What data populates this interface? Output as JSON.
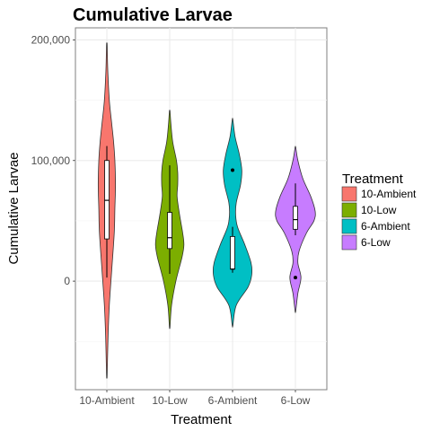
{
  "chart_data": {
    "type": "violin",
    "title": "Cumulative Larvae",
    "xlabel": "Treatment",
    "ylabel": "Cumulative Larvae",
    "ylim": [
      -90000,
      210000
    ],
    "y_ticks": [
      0,
      100000,
      200000
    ],
    "y_tick_labels": [
      "0",
      "100,000",
      "200,000"
    ],
    "categories": [
      "10-Ambient",
      "10-Low",
      "6-Ambient",
      "6-Low"
    ],
    "grid": true,
    "legend": {
      "title": "Treatment",
      "position": "right",
      "entries": [
        "10-Ambient",
        "10-Low",
        "6-Ambient",
        "6-Low"
      ]
    },
    "series": [
      {
        "name": "10-Ambient",
        "color": "#F8766D",
        "min": -78000,
        "max": 196000,
        "box": {
          "whisker_low": 3000,
          "q1": 35000,
          "median": 67000,
          "q3": 100000,
          "whisker_high": 112000
        },
        "outliers": [],
        "density": [
          [
            -78000,
            0.5
          ],
          [
            -45000,
            2
          ],
          [
            -20000,
            4
          ],
          [
            10000,
            8
          ],
          [
            40000,
            12
          ],
          [
            60000,
            13
          ],
          [
            80000,
            14
          ],
          [
            100000,
            13
          ],
          [
            115000,
            11
          ],
          [
            130000,
            8
          ],
          [
            150000,
            4
          ],
          [
            175000,
            1.5
          ],
          [
            196000,
            0.5
          ]
        ]
      },
      {
        "name": "10-Low",
        "color": "#7CAE00",
        "min": -38000,
        "max": 141000,
        "box": {
          "whisker_low": 6000,
          "q1": 27000,
          "median": 36000,
          "q3": 57000,
          "whisker_high": 96000
        },
        "outliers": [],
        "density": [
          [
            -38000,
            0.5
          ],
          [
            -20000,
            3
          ],
          [
            0,
            10
          ],
          [
            20000,
            20
          ],
          [
            30000,
            23
          ],
          [
            40000,
            21
          ],
          [
            55000,
            16
          ],
          [
            70000,
            12
          ],
          [
            80000,
            13
          ],
          [
            90000,
            13
          ],
          [
            100000,
            11
          ],
          [
            115000,
            5
          ],
          [
            130000,
            2
          ],
          [
            141000,
            0.5
          ]
        ]
      },
      {
        "name": "6-Ambient",
        "color": "#00BFC4",
        "min": -37000,
        "max": 134000,
        "box": {
          "whisker_low": 7000,
          "q1": 10000,
          "median": 10000,
          "q3": 37000,
          "whisker_high": 45000
        },
        "outliers": [
          92000
        ],
        "density": [
          [
            -37000,
            0.5
          ],
          [
            -20000,
            6
          ],
          [
            -5000,
            25
          ],
          [
            5000,
            31
          ],
          [
            15000,
            30
          ],
          [
            30000,
            20
          ],
          [
            45000,
            8
          ],
          [
            55000,
            5
          ],
          [
            65000,
            6
          ],
          [
            80000,
            13
          ],
          [
            92000,
            15
          ],
          [
            105000,
            11
          ],
          [
            120000,
            4
          ],
          [
            134000,
            0.5
          ]
        ]
      },
      {
        "name": "6-Low",
        "color": "#C77CFF",
        "min": -25000,
        "max": 111000,
        "box": {
          "whisker_low": 38000,
          "q1": 43000,
          "median": 51000,
          "q3": 62000,
          "whisker_high": 81000
        },
        "outliers": [
          3000
        ],
        "density": [
          [
            -25000,
            0.5
          ],
          [
            -10000,
            4
          ],
          [
            3000,
            9
          ],
          [
            15000,
            4
          ],
          [
            25000,
            6
          ],
          [
            40000,
            18
          ],
          [
            50000,
            30
          ],
          [
            58000,
            32
          ],
          [
            70000,
            25
          ],
          [
            85000,
            12
          ],
          [
            100000,
            4
          ],
          [
            111000,
            0.5
          ]
        ]
      }
    ]
  }
}
